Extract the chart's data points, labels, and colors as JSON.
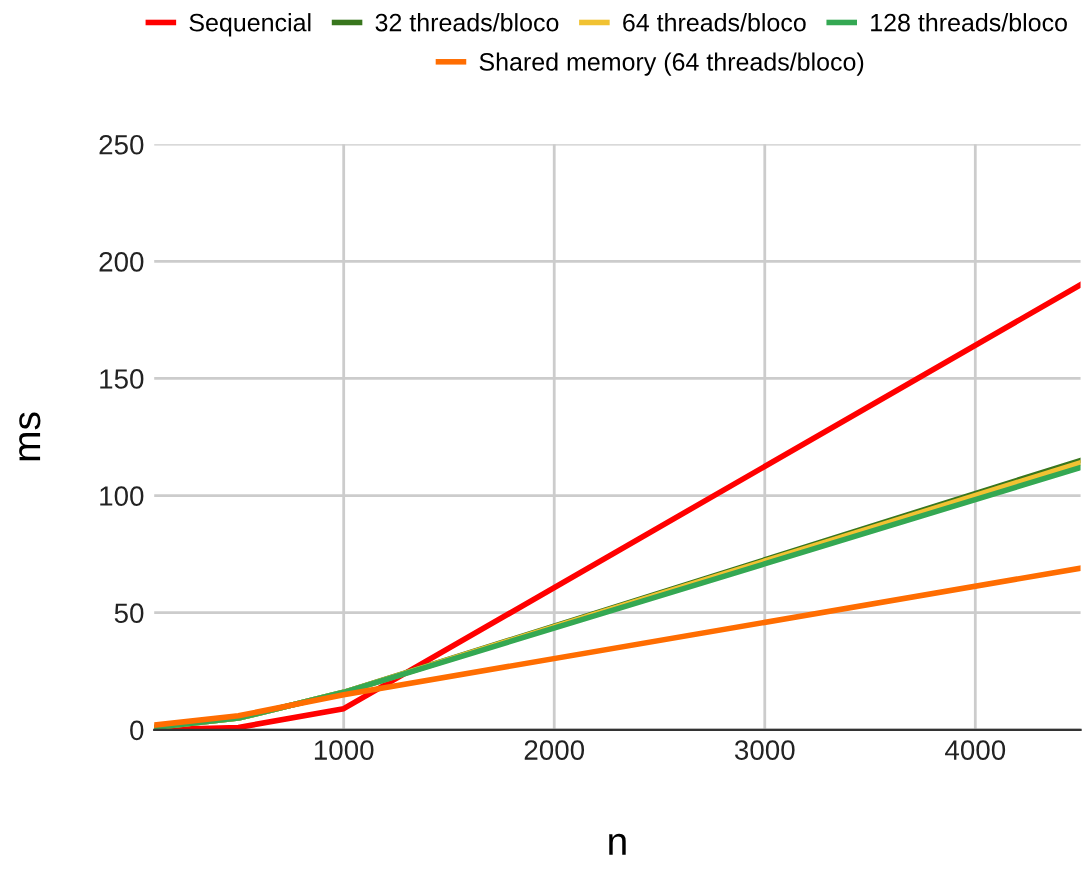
{
  "chart_data": {
    "type": "line",
    "xlabel": "n",
    "ylabel": "ms",
    "x": [
      100,
      500,
      1000,
      4500
    ],
    "series": [
      {
        "name": "Sequencial",
        "color": "#ff0000",
        "values": [
          0,
          1,
          9,
          190
        ]
      },
      {
        "name": "32 threads/bloco",
        "color": "#38761d",
        "values": [
          1,
          5,
          16,
          115
        ]
      },
      {
        "name": "64 threads/bloco",
        "color": "#f1c232",
        "values": [
          1,
          5,
          16,
          114
        ]
      },
      {
        "name": "128 threads/bloco",
        "color": "#34a853",
        "values": [
          1,
          5,
          16,
          112
        ]
      },
      {
        "name": "Shared memory (64 threads/bloco)",
        "color": "#ff6d01",
        "values": [
          2,
          6,
          15,
          69
        ]
      }
    ],
    "xlim": [
      100,
      4500
    ],
    "xticks": [
      1000,
      2000,
      3000,
      4000
    ],
    "ylim": [
      0,
      250
    ],
    "yticks": [
      0,
      50,
      100,
      150,
      200,
      250
    ],
    "grid": true,
    "legend": "top",
    "marker": "none",
    "line_style": "solid"
  }
}
